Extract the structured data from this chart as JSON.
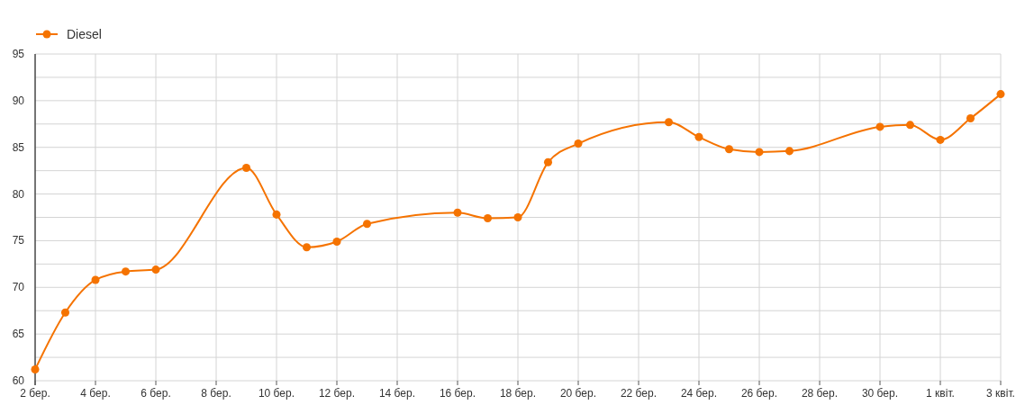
{
  "chart_data": {
    "type": "line",
    "x": [
      "--03-02",
      "--03-03",
      "--03-04",
      "--03-05",
      "--03-06",
      "--03-09",
      "--03-10",
      "--03-11",
      "--03-12",
      "--03-13",
      "--03-16",
      "--03-17",
      "--03-18",
      "--03-19",
      "--03-20",
      "--03-23",
      "--03-24",
      "--03-25",
      "--03-26",
      "--03-27",
      "--03-30",
      "--03-31",
      "--04-01",
      "--04-02",
      "--04-03"
    ],
    "series": [
      {
        "name": "Diesel",
        "color": "#f57300",
        "values": [
          61.2,
          67.3,
          70.8,
          71.7,
          71.9,
          82.8,
          77.8,
          74.3,
          74.9,
          76.8,
          78.0,
          77.4,
          77.5,
          83.4,
          85.4,
          87.7,
          86.1,
          84.8,
          84.5,
          84.6,
          87.2,
          87.4,
          85.8,
          88.1,
          90.7
        ]
      }
    ],
    "xlim": [
      "--03-02",
      "--04-03"
    ],
    "xticks": [
      {
        "value": "--03-02",
        "label": "2 бер."
      },
      {
        "value": "--03-04",
        "label": "4 бер."
      },
      {
        "value": "--03-06",
        "label": "6 бер."
      },
      {
        "value": "--03-08",
        "label": "8 бер."
      },
      {
        "value": "--03-10",
        "label": "10 бер."
      },
      {
        "value": "--03-12",
        "label": "12 бер."
      },
      {
        "value": "--03-14",
        "label": "14 бер."
      },
      {
        "value": "--03-16",
        "label": "16 бер."
      },
      {
        "value": "--03-18",
        "label": "18 бер."
      },
      {
        "value": "--03-20",
        "label": "20 бер."
      },
      {
        "value": "--03-22",
        "label": "22 бер."
      },
      {
        "value": "--03-24",
        "label": "24 бер."
      },
      {
        "value": "--03-26",
        "label": "26 бер."
      },
      {
        "value": "--03-28",
        "label": "28 бер."
      },
      {
        "value": "--03-30",
        "label": "30 бер."
      },
      {
        "value": "--04-01",
        "label": "1 квіт."
      },
      {
        "value": "--04-03",
        "label": "3 квіт."
      }
    ],
    "ylim": [
      60,
      95
    ],
    "yticks": [
      60,
      {
        "value": 62.5,
        "label": null
      },
      65,
      {
        "value": 67.5,
        "label": null
      },
      70,
      {
        "value": 72.5,
        "label": null
      },
      75,
      {
        "value": 77.5,
        "label": null
      },
      80,
      {
        "value": 82.5,
        "label": null
      },
      85,
      {
        "value": 87.5,
        "label": null
      },
      90,
      {
        "value": 92.5,
        "label": null
      },
      95
    ],
    "grid": true,
    "legend": "top left",
    "marker": "circle",
    "line_style": "solid"
  }
}
